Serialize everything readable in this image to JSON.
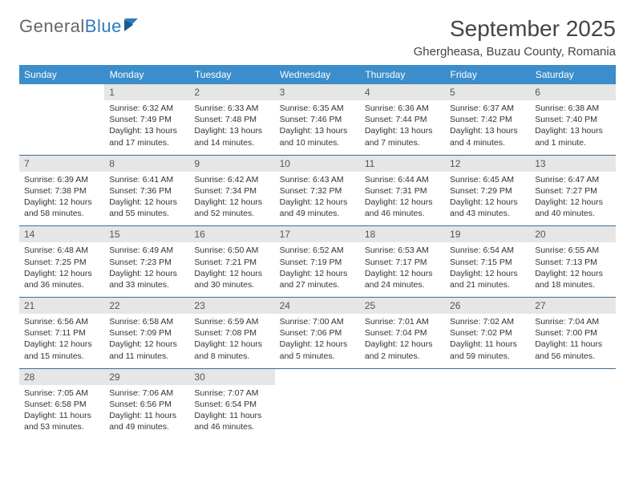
{
  "brand": {
    "part1": "General",
    "part2": "Blue"
  },
  "title": "September 2025",
  "location": "Ghergheasa, Buzau County, Romania",
  "colors": {
    "header_bg": "#3b8dcb",
    "header_fg": "#ffffff",
    "daynum_bg": "#e6e6e6",
    "rule": "#3a6d9a",
    "brand_blue": "#2f7abf",
    "text": "#333333"
  },
  "day_names": [
    "Sunday",
    "Monday",
    "Tuesday",
    "Wednesday",
    "Thursday",
    "Friday",
    "Saturday"
  ],
  "weeks": [
    [
      {
        "n": "",
        "sr": "",
        "ss": "",
        "dl": ""
      },
      {
        "n": "1",
        "sr": "Sunrise: 6:32 AM",
        "ss": "Sunset: 7:49 PM",
        "dl": "Daylight: 13 hours and 17 minutes."
      },
      {
        "n": "2",
        "sr": "Sunrise: 6:33 AM",
        "ss": "Sunset: 7:48 PM",
        "dl": "Daylight: 13 hours and 14 minutes."
      },
      {
        "n": "3",
        "sr": "Sunrise: 6:35 AM",
        "ss": "Sunset: 7:46 PM",
        "dl": "Daylight: 13 hours and 10 minutes."
      },
      {
        "n": "4",
        "sr": "Sunrise: 6:36 AM",
        "ss": "Sunset: 7:44 PM",
        "dl": "Daylight: 13 hours and 7 minutes."
      },
      {
        "n": "5",
        "sr": "Sunrise: 6:37 AM",
        "ss": "Sunset: 7:42 PM",
        "dl": "Daylight: 13 hours and 4 minutes."
      },
      {
        "n": "6",
        "sr": "Sunrise: 6:38 AM",
        "ss": "Sunset: 7:40 PM",
        "dl": "Daylight: 13 hours and 1 minute."
      }
    ],
    [
      {
        "n": "7",
        "sr": "Sunrise: 6:39 AM",
        "ss": "Sunset: 7:38 PM",
        "dl": "Daylight: 12 hours and 58 minutes."
      },
      {
        "n": "8",
        "sr": "Sunrise: 6:41 AM",
        "ss": "Sunset: 7:36 PM",
        "dl": "Daylight: 12 hours and 55 minutes."
      },
      {
        "n": "9",
        "sr": "Sunrise: 6:42 AM",
        "ss": "Sunset: 7:34 PM",
        "dl": "Daylight: 12 hours and 52 minutes."
      },
      {
        "n": "10",
        "sr": "Sunrise: 6:43 AM",
        "ss": "Sunset: 7:32 PM",
        "dl": "Daylight: 12 hours and 49 minutes."
      },
      {
        "n": "11",
        "sr": "Sunrise: 6:44 AM",
        "ss": "Sunset: 7:31 PM",
        "dl": "Daylight: 12 hours and 46 minutes."
      },
      {
        "n": "12",
        "sr": "Sunrise: 6:45 AM",
        "ss": "Sunset: 7:29 PM",
        "dl": "Daylight: 12 hours and 43 minutes."
      },
      {
        "n": "13",
        "sr": "Sunrise: 6:47 AM",
        "ss": "Sunset: 7:27 PM",
        "dl": "Daylight: 12 hours and 40 minutes."
      }
    ],
    [
      {
        "n": "14",
        "sr": "Sunrise: 6:48 AM",
        "ss": "Sunset: 7:25 PM",
        "dl": "Daylight: 12 hours and 36 minutes."
      },
      {
        "n": "15",
        "sr": "Sunrise: 6:49 AM",
        "ss": "Sunset: 7:23 PM",
        "dl": "Daylight: 12 hours and 33 minutes."
      },
      {
        "n": "16",
        "sr": "Sunrise: 6:50 AM",
        "ss": "Sunset: 7:21 PM",
        "dl": "Daylight: 12 hours and 30 minutes."
      },
      {
        "n": "17",
        "sr": "Sunrise: 6:52 AM",
        "ss": "Sunset: 7:19 PM",
        "dl": "Daylight: 12 hours and 27 minutes."
      },
      {
        "n": "18",
        "sr": "Sunrise: 6:53 AM",
        "ss": "Sunset: 7:17 PM",
        "dl": "Daylight: 12 hours and 24 minutes."
      },
      {
        "n": "19",
        "sr": "Sunrise: 6:54 AM",
        "ss": "Sunset: 7:15 PM",
        "dl": "Daylight: 12 hours and 21 minutes."
      },
      {
        "n": "20",
        "sr": "Sunrise: 6:55 AM",
        "ss": "Sunset: 7:13 PM",
        "dl": "Daylight: 12 hours and 18 minutes."
      }
    ],
    [
      {
        "n": "21",
        "sr": "Sunrise: 6:56 AM",
        "ss": "Sunset: 7:11 PM",
        "dl": "Daylight: 12 hours and 15 minutes."
      },
      {
        "n": "22",
        "sr": "Sunrise: 6:58 AM",
        "ss": "Sunset: 7:09 PM",
        "dl": "Daylight: 12 hours and 11 minutes."
      },
      {
        "n": "23",
        "sr": "Sunrise: 6:59 AM",
        "ss": "Sunset: 7:08 PM",
        "dl": "Daylight: 12 hours and 8 minutes."
      },
      {
        "n": "24",
        "sr": "Sunrise: 7:00 AM",
        "ss": "Sunset: 7:06 PM",
        "dl": "Daylight: 12 hours and 5 minutes."
      },
      {
        "n": "25",
        "sr": "Sunrise: 7:01 AM",
        "ss": "Sunset: 7:04 PM",
        "dl": "Daylight: 12 hours and 2 minutes."
      },
      {
        "n": "26",
        "sr": "Sunrise: 7:02 AM",
        "ss": "Sunset: 7:02 PM",
        "dl": "Daylight: 11 hours and 59 minutes."
      },
      {
        "n": "27",
        "sr": "Sunrise: 7:04 AM",
        "ss": "Sunset: 7:00 PM",
        "dl": "Daylight: 11 hours and 56 minutes."
      }
    ],
    [
      {
        "n": "28",
        "sr": "Sunrise: 7:05 AM",
        "ss": "Sunset: 6:58 PM",
        "dl": "Daylight: 11 hours and 53 minutes."
      },
      {
        "n": "29",
        "sr": "Sunrise: 7:06 AM",
        "ss": "Sunset: 6:56 PM",
        "dl": "Daylight: 11 hours and 49 minutes."
      },
      {
        "n": "30",
        "sr": "Sunrise: 7:07 AM",
        "ss": "Sunset: 6:54 PM",
        "dl": "Daylight: 11 hours and 46 minutes."
      },
      {
        "n": "",
        "sr": "",
        "ss": "",
        "dl": ""
      },
      {
        "n": "",
        "sr": "",
        "ss": "",
        "dl": ""
      },
      {
        "n": "",
        "sr": "",
        "ss": "",
        "dl": ""
      },
      {
        "n": "",
        "sr": "",
        "ss": "",
        "dl": ""
      }
    ]
  ]
}
